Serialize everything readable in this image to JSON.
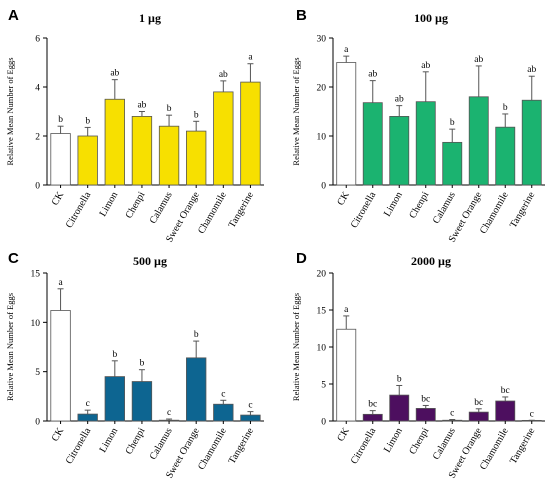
{
  "chart_data": [
    {
      "type": "bar",
      "panel": "A",
      "title": "1 µg",
      "ylabel": "Relative Mean Number of Eggs",
      "categories": [
        "CK",
        "Citronella",
        "Limon",
        "Chenpi",
        "Calamus",
        "Sweet Orange",
        "Chamomile",
        "Tangerine"
      ],
      "values": [
        2.1,
        2.0,
        3.5,
        2.8,
        2.4,
        2.2,
        3.8,
        4.2
      ],
      "errors": [
        0.3,
        0.35,
        0.8,
        0.2,
        0.45,
        0.4,
        0.45,
        0.75
      ],
      "letters": [
        "b",
        "b",
        "ab",
        "ab",
        "b",
        "b",
        "ab",
        "a"
      ],
      "ylim": [
        0,
        6
      ],
      "yticks": [
        0,
        2,
        4,
        6
      ],
      "bar_color": "#f7e000",
      "control_color": "#ffffff"
    },
    {
      "type": "bar",
      "panel": "B",
      "title": "100 µg",
      "ylabel": "Relative Mean Number of Eggs",
      "categories": [
        "CK",
        "Citronella",
        "Limon",
        "Chenpi",
        "Calamus",
        "Sweet Orange",
        "Chamomile",
        "Tangerine"
      ],
      "values": [
        25,
        16.8,
        14,
        17,
        8.7,
        18,
        11.8,
        17.3
      ],
      "errors": [
        1.3,
        4.5,
        2.2,
        6.1,
        2.7,
        6.3,
        2.7,
        4.9
      ],
      "letters": [
        "a",
        "ab",
        "ab",
        "ab",
        "b",
        "ab",
        "b",
        "ab"
      ],
      "ylim": [
        0,
        30
      ],
      "yticks": [
        0,
        10,
        20,
        30
      ],
      "bar_color": "#1bb370",
      "control_color": "#ffffff"
    },
    {
      "type": "bar",
      "panel": "C",
      "title": "500 µg",
      "ylabel": "Relative Mean Number of Eggs",
      "categories": [
        "CK",
        "Citronella",
        "Limon",
        "Chenpi",
        "Calamus",
        "Sweet Orange",
        "Chamomile",
        "Tangerine"
      ],
      "values": [
        11.2,
        0.7,
        4.5,
        4.0,
        0.08,
        6.4,
        1.7,
        0.6
      ],
      "errors": [
        2.2,
        0.4,
        1.6,
        1.2,
        0.12,
        1.7,
        0.4,
        0.35
      ],
      "letters": [
        "a",
        "c",
        "b",
        "b",
        "c",
        "b",
        "c",
        "c"
      ],
      "ylim": [
        0,
        15
      ],
      "yticks": [
        0,
        5,
        10,
        15
      ],
      "bar_color": "#0d6591",
      "control_color": "#ffffff"
    },
    {
      "type": "bar",
      "panel": "D",
      "title": "2000 µg",
      "ylabel": "Relative Mean Number of Eggs",
      "categories": [
        "CK",
        "Citronella",
        "Limon",
        "Chenpi",
        "Calamus",
        "Sweet Orange",
        "Chamomile",
        "Tangerine"
      ],
      "values": [
        12.4,
        0.9,
        3.5,
        1.7,
        0.1,
        1.2,
        2.7,
        0.05
      ],
      "errors": [
        1.8,
        0.5,
        1.3,
        0.4,
        0.1,
        0.45,
        0.55,
        0.05
      ],
      "letters": [
        "a",
        "bc",
        "b",
        "bc",
        "c",
        "bc",
        "bc",
        "c"
      ],
      "ylim": [
        0,
        20
      ],
      "yticks": [
        0,
        5,
        10,
        15,
        20
      ],
      "bar_color": "#4d0f5f",
      "control_color": "#ffffff"
    }
  ]
}
